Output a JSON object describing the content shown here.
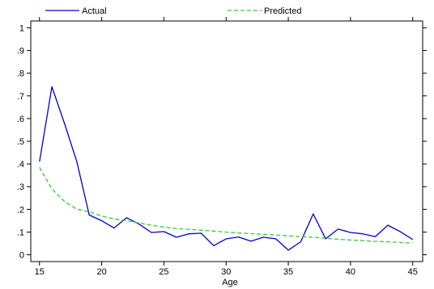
{
  "chart_data": {
    "type": "line",
    "xlabel": "Age",
    "ylabel": "",
    "xlim": [
      14.3,
      45.8
    ],
    "ylim": [
      -0.03,
      1.03
    ],
    "x_ticks": [
      15,
      20,
      25,
      30,
      35,
      40,
      45
    ],
    "x_tick_labels": [
      "15",
      "20",
      "25",
      "30",
      "35",
      "40",
      "45"
    ],
    "y_ticks": [
      0,
      0.1,
      0.2,
      0.3,
      0.4,
      0.5,
      0.6,
      0.7,
      0.8,
      0.9,
      1.0
    ],
    "y_tick_labels": [
      "0",
      ".1",
      ".2",
      ".3",
      ".4",
      ".5",
      ".6",
      ".7",
      ".8",
      ".9",
      "1"
    ],
    "grid": false,
    "legend_position": "top",
    "x": [
      15,
      16,
      17,
      18,
      19,
      20,
      21,
      22,
      23,
      24,
      25,
      26,
      27,
      28,
      29,
      30,
      31,
      32,
      33,
      34,
      35,
      36,
      37,
      38,
      39,
      40,
      41,
      42,
      43,
      44,
      45
    ],
    "series": [
      {
        "name": "Actual",
        "color": "#0000cc",
        "style": "solid",
        "values": [
          0.41,
          0.74,
          0.58,
          0.41,
          0.175,
          0.15,
          0.118,
          0.163,
          0.135,
          0.098,
          0.102,
          0.077,
          0.092,
          0.095,
          0.04,
          0.07,
          0.078,
          0.06,
          0.077,
          0.07,
          0.02,
          0.057,
          0.18,
          0.07,
          0.113,
          0.098,
          0.092,
          0.08,
          0.13,
          0.102,
          0.067
        ]
      },
      {
        "name": "Predicted",
        "color": "#33cc33",
        "style": "dashed",
        "values": [
          0.385,
          0.29,
          0.235,
          0.2,
          0.19,
          0.17,
          0.158,
          0.15,
          0.14,
          0.13,
          0.122,
          0.116,
          0.112,
          0.108,
          0.104,
          0.1,
          0.096,
          0.093,
          0.09,
          0.087,
          0.083,
          0.08,
          0.077,
          0.072,
          0.068,
          0.065,
          0.062,
          0.059,
          0.057,
          0.054,
          0.051
        ]
      }
    ]
  }
}
